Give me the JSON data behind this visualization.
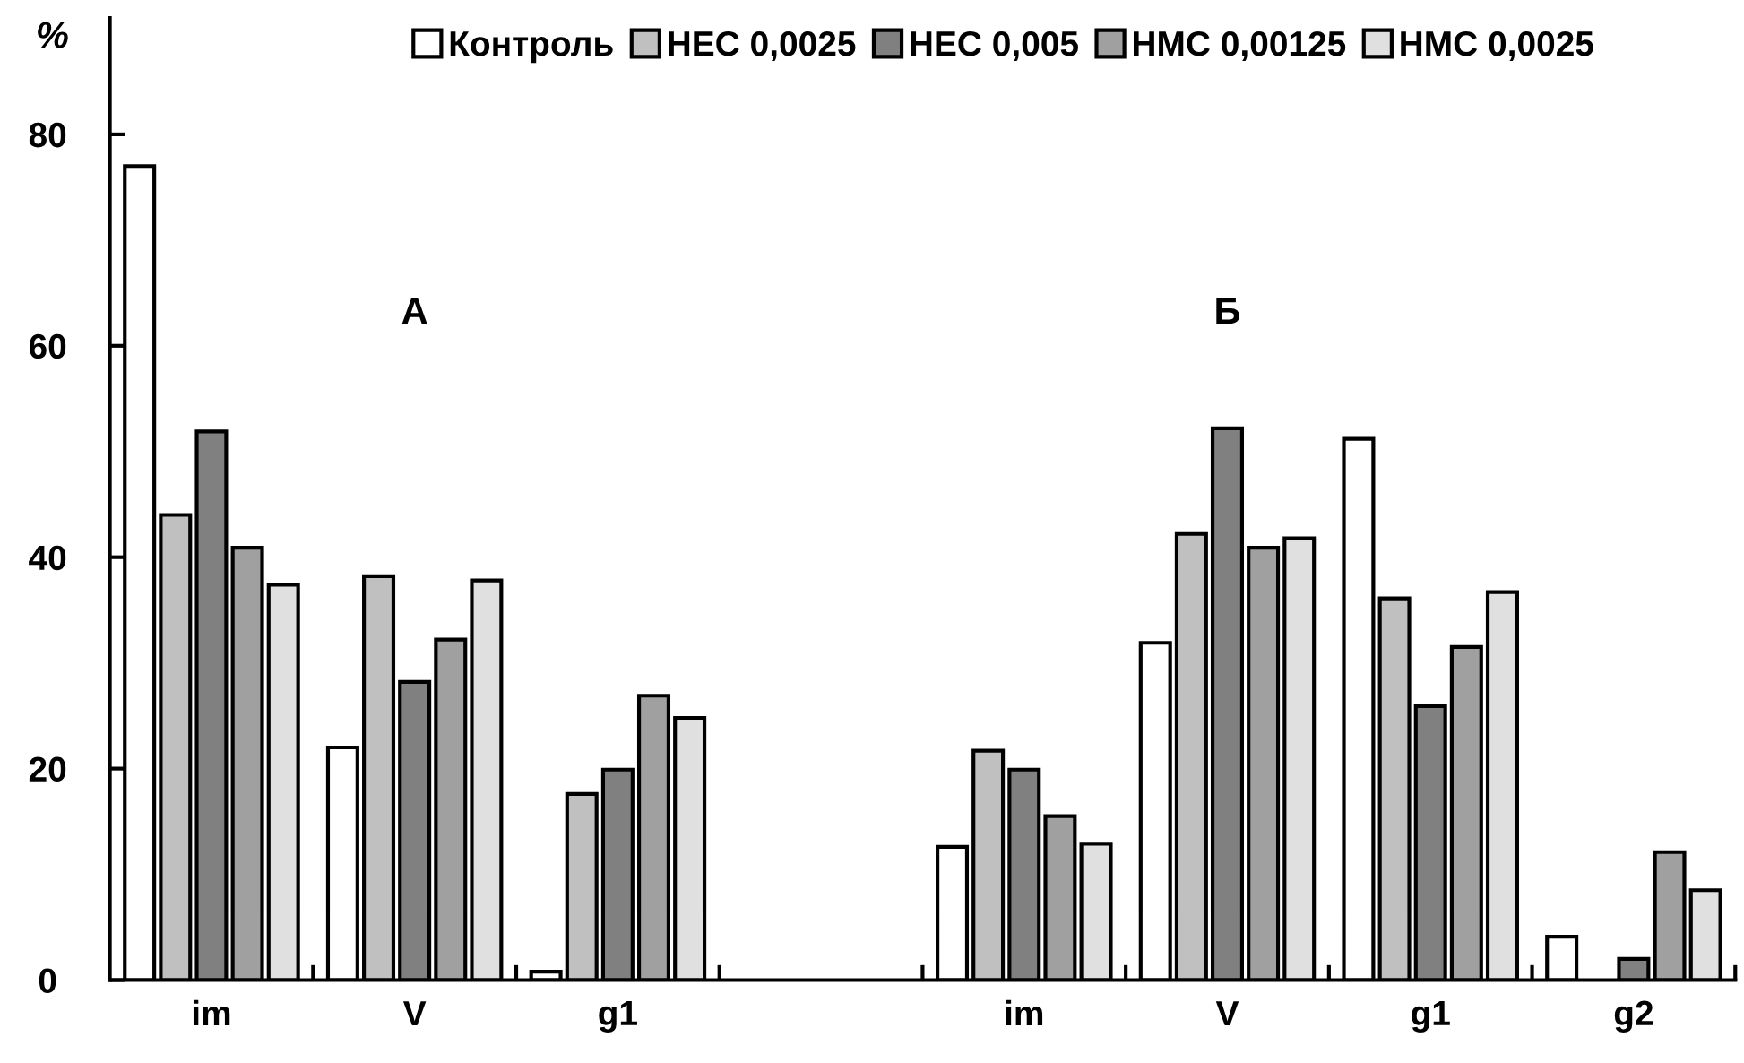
{
  "chart_data": {
    "type": "bar",
    "ylabel": "%",
    "categories": [
      "im",
      "V",
      "g1",
      null,
      "im",
      "V",
      "g1",
      "g2"
    ],
    "series": [
      {
        "name": "Контроль",
        "color": "#ffffff",
        "values": [
          77,
          22,
          0.8,
          null,
          12.6,
          31.9,
          51.2,
          4.1
        ]
      },
      {
        "name": "НЕС 0,0025",
        "color": "#c0c0c0",
        "values": [
          44,
          38.2,
          17.6,
          null,
          21.7,
          42.2,
          36.1,
          null
        ]
      },
      {
        "name": "НЕС 0,005",
        "color": "#808080",
        "values": [
          51.9,
          28.2,
          19.9,
          null,
          19.9,
          52.2,
          25.9,
          2
        ]
      },
      {
        "name": "НМС 0,00125",
        "color": "#a0a0a0",
        "values": [
          40.9,
          32.2,
          26.9,
          null,
          15.5,
          40.9,
          31.5,
          12.1
        ]
      },
      {
        "name": "НМС 0,0025",
        "color": "#e0e0e0",
        "values": [
          37.4,
          37.8,
          24.8,
          null,
          12.9,
          41.8,
          36.7,
          8.5
        ]
      }
    ],
    "annotations": [
      "А",
      "Б"
    ],
    "ylim": [
      0,
      91
    ],
    "yticks": [
      0,
      20,
      40,
      60,
      80
    ],
    "grid": false,
    "legend": "top"
  }
}
